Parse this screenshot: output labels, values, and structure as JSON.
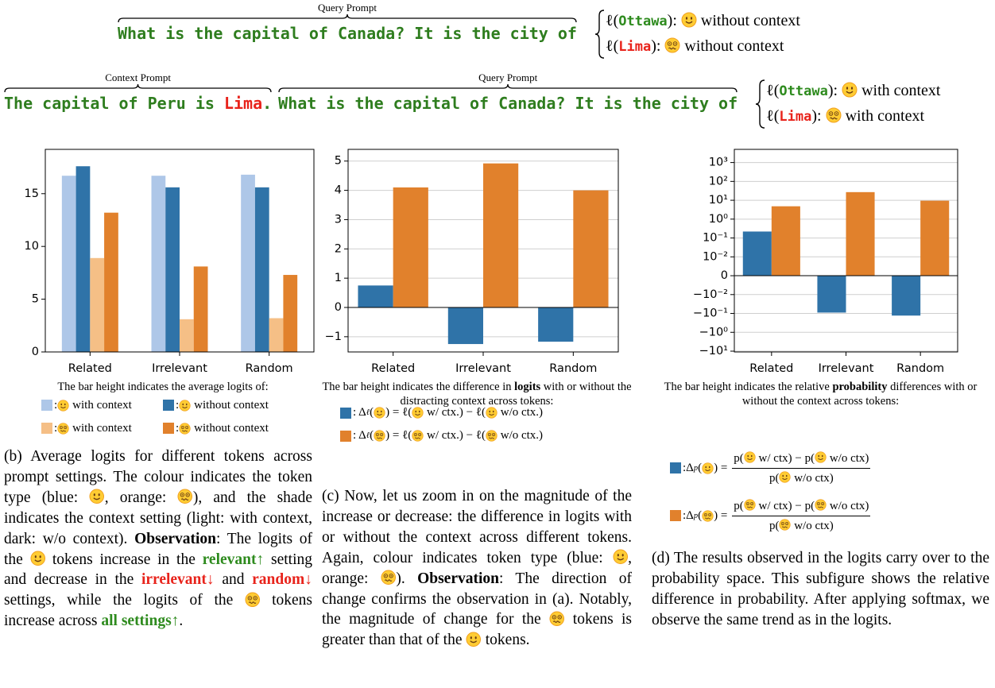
{
  "prompt_rows": [
    {
      "segments": [
        {
          "label": "Query Prompt",
          "parts": [
            {
              "text": "What is the capital of Canada? It is the city of"
            }
          ]
        }
      ],
      "outcomes": [
        {
          "parts": [
            {
              "text": "ℓ("
            },
            {
              "text": "Ottawa",
              "style": [
                "mono",
                "green"
              ]
            },
            {
              "text": "): "
            },
            {
              "icon": "smile"
            },
            {
              "text": " without context"
            }
          ]
        },
        {
          "parts": [
            {
              "text": "ℓ("
            },
            {
              "text": "Lima",
              "style": [
                "mono",
                "red"
              ]
            },
            {
              "text": "): "
            },
            {
              "icon": "dizzy"
            },
            {
              "text": " without context"
            }
          ]
        }
      ]
    },
    {
      "segments": [
        {
          "label": "Context Prompt",
          "parts": [
            {
              "text": "The capital of Peru is "
            },
            {
              "text": "Lima",
              "style": [
                "red"
              ]
            },
            {
              "text": "."
            }
          ]
        },
        {
          "label": "Query Prompt",
          "parts": [
            {
              "text": "What is the capital of Canada? It is the city of"
            }
          ]
        }
      ],
      "outcomes": [
        {
          "parts": [
            {
              "text": "ℓ("
            },
            {
              "text": "Ottawa",
              "style": [
                "mono",
                "green"
              ]
            },
            {
              "text": "): "
            },
            {
              "icon": "smile"
            },
            {
              "text": " with context"
            }
          ]
        },
        {
          "parts": [
            {
              "text": "ℓ("
            },
            {
              "text": "Lima",
              "style": [
                "mono",
                "red"
              ]
            },
            {
              "text": "): "
            },
            {
              "icon": "dizzy"
            },
            {
              "text": " with context"
            }
          ]
        }
      ]
    }
  ],
  "captions": [
    {
      "intro": [
        {
          "text": "The bar height indicates the average logits of:"
        }
      ],
      "body": [
        {
          "text": "(b) Average logits for different tokens across prompt settings. The colour indicates the token type (blue: "
        },
        {
          "icon": "smile"
        },
        {
          "text": ", orange: "
        },
        {
          "icon": "dizzy"
        },
        {
          "text": "), and the shade indicates the context setting (light: with context, dark: w/o context). "
        },
        {
          "text": "Observation",
          "style": [
            "bold"
          ]
        },
        {
          "text": ": The logits of the "
        },
        {
          "icon": "smile"
        },
        {
          "text": " tokens increase in the "
        },
        {
          "text": "relevant↑",
          "style": [
            "bold",
            "green"
          ]
        },
        {
          "text": " setting and decrease in the "
        },
        {
          "text": "irrelevant↓",
          "style": [
            "bold",
            "red"
          ]
        },
        {
          "text": " and "
        },
        {
          "text": "random↓",
          "style": [
            "bold",
            "red"
          ]
        },
        {
          "text": " settings, while the logits of the "
        },
        {
          "icon": "dizzy"
        },
        {
          "text": " tokens increase across "
        },
        {
          "text": "all settings↑",
          "style": [
            "bold",
            "green"
          ]
        },
        {
          "text": "."
        }
      ]
    },
    {
      "intro": [
        {
          "text": "The bar height indicates the difference in "
        },
        {
          "text": "logits",
          "style": [
            "bold"
          ]
        },
        {
          "text": " with or without the distracting context across tokens:"
        }
      ],
      "formulas": [
        {
          "lhs": [
            {
              "text": ": Δ"
            },
            {
              "text": "ℓ",
              "style": [
                "sub"
              ]
            },
            {
              "text": "("
            },
            {
              "icon": "smile"
            },
            {
              "text": ") = ℓ("
            },
            {
              "icon": "smile"
            },
            {
              "text": " w/ ctx.) − ℓ("
            },
            {
              "icon": "smile"
            },
            {
              "text": " w/o ctx.)"
            }
          ]
        },
        {
          "lhs": [
            {
              "text": ": Δ"
            },
            {
              "text": "ℓ",
              "style": [
                "sub"
              ]
            },
            {
              "text": "("
            },
            {
              "icon": "dizzy"
            },
            {
              "text": ") = ℓ("
            },
            {
              "icon": "dizzy"
            },
            {
              "text": " w/ ctx.) − ℓ("
            },
            {
              "icon": "dizzy"
            },
            {
              "text": " w/o ctx.)"
            }
          ]
        }
      ],
      "body": [
        {
          "text": "(c) Now, let us zoom in on the magnitude of the increase or decrease: the difference in logits with or without the context across different tokens. Again, colour indicates token type (blue: "
        },
        {
          "icon": "smile"
        },
        {
          "text": ", orange: "
        },
        {
          "icon": "dizzy"
        },
        {
          "text": "). "
        },
        {
          "text": "Observation",
          "style": [
            "bold"
          ]
        },
        {
          "text": ": The direction of change confirms the observation in (a). Notably, the magnitude of change for the "
        },
        {
          "icon": "dizzy"
        },
        {
          "text": " tokens is greater than that of the "
        },
        {
          "icon": "smile"
        },
        {
          "text": " tokens."
        }
      ]
    },
    {
      "intro": [
        {
          "text": "The bar height indicates the relative "
        },
        {
          "text": "probability",
          "style": [
            "bold"
          ]
        },
        {
          "text": " differences with or without the context across tokens:"
        }
      ],
      "formulas": [
        {
          "lhs": [
            {
              "text": ":Δ"
            },
            {
              "text": "p",
              "style": [
                "sub"
              ]
            },
            {
              "text": "("
            },
            {
              "icon": "smile"
            },
            {
              "text": ") ="
            }
          ],
          "numerator": [
            {
              "text": "p("
            },
            {
              "icon": "smile"
            },
            {
              "text": " w/ ctx) − p("
            },
            {
              "icon": "smile"
            },
            {
              "text": " w/o ctx)"
            }
          ],
          "denominator": [
            {
              "text": "p("
            },
            {
              "icon": "smile"
            },
            {
              "text": " w/o ctx)"
            }
          ]
        },
        {
          "lhs": [
            {
              "text": ":Δ"
            },
            {
              "text": "p",
              "style": [
                "sub"
              ]
            },
            {
              "text": "("
            },
            {
              "icon": "dizzy"
            },
            {
              "text": ") ="
            }
          ],
          "numerator": [
            {
              "text": "p("
            },
            {
              "icon": "dizzy"
            },
            {
              "text": " w/ ctx) − p("
            },
            {
              "icon": "dizzy"
            },
            {
              "text": " w/o ctx)"
            }
          ],
          "denominator": [
            {
              "text": "p("
            },
            {
              "icon": "dizzy"
            },
            {
              "text": " w/o ctx)"
            }
          ]
        }
      ],
      "body": [
        {
          "text": "(d) The results observed in the logits carry over to the probability space. This subfigure shows the relative difference in probability. After applying softmax, we observe the same trend as in the logits."
        }
      ]
    }
  ],
  "chart_data": [
    {
      "type": "bar",
      "categories": [
        "Related",
        "Irrelevant",
        "Random"
      ],
      "ylim": [
        0,
        19.2
      ],
      "yticks": [
        0,
        5,
        10,
        15
      ],
      "grid": false,
      "legend_separator": ":",
      "series": [
        {
          "name": "with context",
          "icon": "smile",
          "color": "#aec7e8",
          "values": [
            16.7,
            16.7,
            16.8
          ]
        },
        {
          "name": "without context",
          "icon": "smile",
          "color": "#2f73a8",
          "values": [
            17.6,
            15.6,
            15.6
          ]
        },
        {
          "name": "with context",
          "icon": "dizzy",
          "color": "#f5bf86",
          "values": [
            8.9,
            3.1,
            3.2
          ]
        },
        {
          "name": "without context",
          "icon": "dizzy",
          "color": "#e1812c",
          "values": [
            13.2,
            8.1,
            7.3
          ]
        }
      ]
    },
    {
      "type": "bar",
      "categories": [
        "Related",
        "Irrelevant",
        "Random"
      ],
      "ylim": [
        -1.52,
        5.4
      ],
      "yticks": [
        {
          "value": -1,
          "label": "−1"
        },
        0,
        1,
        2,
        3,
        4,
        5
      ],
      "grid": true,
      "series": [
        {
          "color": "#2f73a8",
          "values": [
            0.75,
            -1.25,
            -1.17
          ]
        },
        {
          "color": "#e1812c",
          "values": [
            4.1,
            4.92,
            4.0
          ]
        }
      ]
    },
    {
      "type": "bar",
      "categories": [
        "Related",
        "Irrelevant",
        "Random"
      ],
      "yscale": "symlog",
      "linthresh": 0.01,
      "ylim": [
        -11,
        5000
      ],
      "grid": true,
      "yticks": [
        {
          "value": 1000,
          "label": "10³"
        },
        {
          "value": 100,
          "label": "10²"
        },
        {
          "value": 10,
          "label": "10¹"
        },
        {
          "value": 1,
          "label": "10⁰"
        },
        {
          "value": 0.1,
          "label": "10⁻¹"
        },
        {
          "value": 0.01,
          "label": "10⁻²"
        },
        0,
        {
          "value": -0.01,
          "label": "−10⁻²"
        },
        {
          "value": -0.1,
          "label": "−10⁻¹"
        },
        {
          "value": -1,
          "label": "−10⁰"
        },
        {
          "value": -10,
          "label": "−10¹"
        }
      ],
      "series": [
        {
          "color": "#2f73a8",
          "values": [
            0.22,
            -0.09,
            -0.13
          ]
        },
        {
          "color": "#e1812c",
          "values": [
            4.8,
            27,
            9.5
          ]
        }
      ]
    }
  ]
}
